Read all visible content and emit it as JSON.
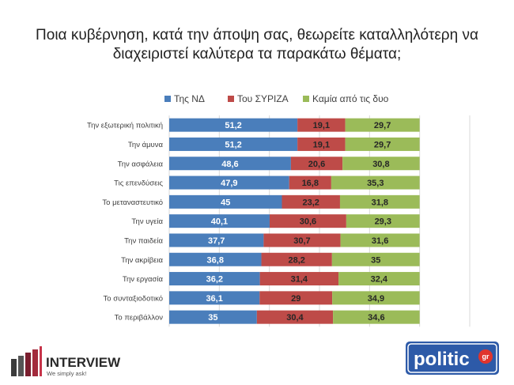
{
  "title_lines": [
    "Ποια κυβέρνηση, κατά την άποψη σας, θεωρείτε καταλληλότερη να",
    "διαχειριστεί καλύτερα τα παρακάτω θέματα;"
  ],
  "colors": {
    "nd": "#4a7ebb",
    "syriza": "#be4b48",
    "none": "#9bbb59",
    "grid": "#d9d9d9"
  },
  "chart_data": {
    "type": "bar",
    "orientation": "horizontal",
    "stacked": true,
    "title": "Ποια κυβέρνηση, κατά την άποψη σας, θεωρείτε καταλληλότερη να διαχειριστεί καλύτερα τα παρακάτω θέματα;",
    "legend_position": "top",
    "xlim": [
      0,
      120
    ],
    "grid": true,
    "categories": [
      "Την εξωτερική πολιτική",
      "Την άμυνα",
      "Την ασφάλεια",
      "Τις επενδύσεις",
      "Το μεταναστευτικό",
      "Την υγεία",
      "Την παιδεία",
      "Την ακρίβεια",
      "Την εργασία",
      "Το συνταξιοδοτικό",
      "Το περιβάλλον"
    ],
    "series": [
      {
        "name": "Της ΝΔ",
        "values": [
          51.2,
          51.2,
          48.6,
          47.9,
          45,
          40.1,
          37.7,
          36.8,
          36.2,
          36.1,
          35
        ],
        "labels": [
          "51,2",
          "51,2",
          "48,6",
          "47,9",
          "45",
          "40,1",
          "37,7",
          "36,8",
          "36,2",
          "36,1",
          "35"
        ]
      },
      {
        "name": "Του ΣΥΡΙΖΑ",
        "values": [
          19.1,
          19.1,
          20.6,
          16.8,
          23.2,
          30.6,
          30.7,
          28.2,
          31.4,
          29,
          30.4
        ],
        "labels": [
          "19,1",
          "19,1",
          "20,6",
          "16,8",
          "23,2",
          "30,6",
          "30,7",
          "28,2",
          "31,4",
          "29",
          "30,4"
        ]
      },
      {
        "name": "Καμία από τις δυο",
        "values": [
          29.7,
          29.7,
          30.8,
          35.3,
          31.8,
          29.3,
          31.6,
          35,
          32.4,
          34.9,
          34.6
        ],
        "labels": [
          "29,7",
          "29,7",
          "30,8",
          "35,3",
          "31,8",
          "29,3",
          "31,6",
          "35",
          "32,4",
          "34,9",
          "34,6"
        ]
      }
    ]
  },
  "logos": {
    "interview_name": "INTERVIEW",
    "interview_tagline": "We simply ask!",
    "politic_name": "politic",
    "politic_suffix": "gr"
  }
}
